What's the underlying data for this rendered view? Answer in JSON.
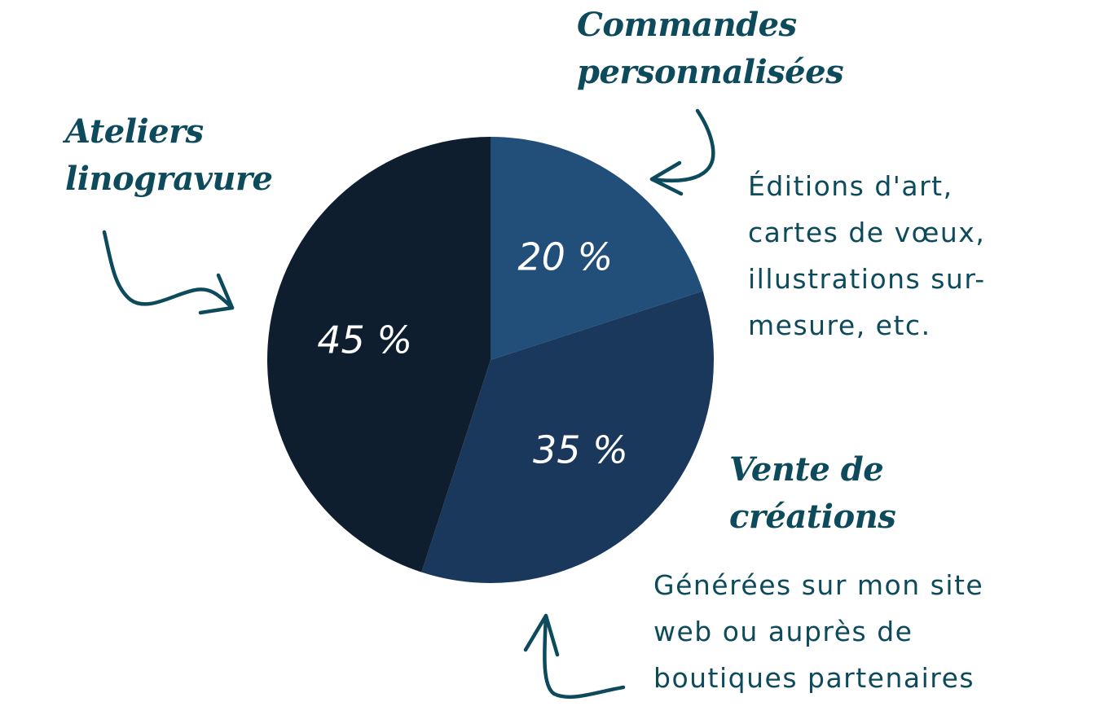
{
  "chart_data": {
    "type": "pie",
    "title": "",
    "slices": [
      {
        "name": "Commandes personnalisées",
        "value": 20,
        "label": "20 %",
        "color": "#224f7a"
      },
      {
        "name": "Vente de créations",
        "value": 35,
        "label": "35 %",
        "color": "#19385c"
      },
      {
        "name": "Ateliers linogravure",
        "value": 45,
        "label": "45 %",
        "color": "#0e1e2f"
      }
    ],
    "legend": "none"
  },
  "annotations": {
    "ateliers": {
      "line1": "Ateliers",
      "line2": "linogravure"
    },
    "commandes": {
      "line1": "Commandes",
      "line2": "personnalisées",
      "desc_line1": "Éditions d'art,",
      "desc_line2": "cartes de vœux,",
      "desc_line3": "illustrations sur-",
      "desc_line4": "mesure, etc."
    },
    "vente": {
      "line1": "Vente de",
      "line2": "créations",
      "desc_line1": "Générées sur mon site",
      "desc_line2": "web ou auprès de",
      "desc_line3": "boutiques partenaires"
    }
  },
  "colors": {
    "text": "#0c4a5c",
    "slice_label": "#ffffff",
    "background": "#ffffff"
  }
}
